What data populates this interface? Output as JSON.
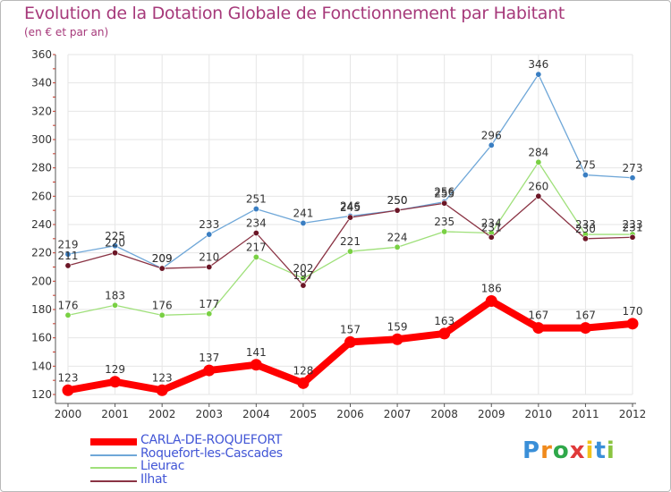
{
  "title": "Evolution de la Dotation Globale de Fonctionnement par Habitant",
  "subtitle": "(en € et par an)",
  "logo_text": "Proxiti",
  "colors": {
    "title": "#a6397a",
    "legend_text": "#4256d6",
    "grid": "#e6e6e6",
    "axis": "#555555"
  },
  "chart_data": {
    "type": "line",
    "title": "Evolution de la Dotation Globale de Fonctionnement par Habitant",
    "subtitle": "(en € et par an)",
    "x": [
      "2000",
      "2001",
      "2002",
      "2003",
      "2004",
      "2005",
      "2006",
      "2007",
      "2008",
      "2009",
      "2010",
      "2011",
      "2012"
    ],
    "ylim": [
      120,
      360
    ],
    "yticks": [
      120,
      140,
      160,
      180,
      200,
      220,
      240,
      260,
      280,
      300,
      320,
      340,
      360
    ],
    "grid": true,
    "legend_position": "bottom-left",
    "series": [
      {
        "name": "CARLA-DE-ROQUEFORT",
        "color": "#ff0000",
        "marker": "#ff0000",
        "values": [
          123,
          129,
          123,
          137,
          141,
          128,
          157,
          159,
          163,
          186,
          167,
          167,
          170
        ]
      },
      {
        "name": "Roquefort-les-Cascades",
        "color": "#6fa7d8",
        "marker": "#3a7ec2",
        "values": [
          219,
          225,
          209,
          233,
          251,
          241,
          246,
          250,
          256,
          296,
          346,
          275,
          273
        ]
      },
      {
        "name": "Lieurac",
        "color": "#9fe07a",
        "marker": "#79d043",
        "values": [
          176,
          183,
          176,
          177,
          217,
          202,
          221,
          224,
          235,
          234,
          284,
          233,
          233
        ]
      },
      {
        "name": "Ilhat",
        "color": "#8a3344",
        "marker": "#6b1626",
        "values": [
          211,
          220,
          209,
          210,
          234,
          197,
          245,
          250,
          255,
          231,
          260,
          230,
          231
        ]
      }
    ]
  }
}
